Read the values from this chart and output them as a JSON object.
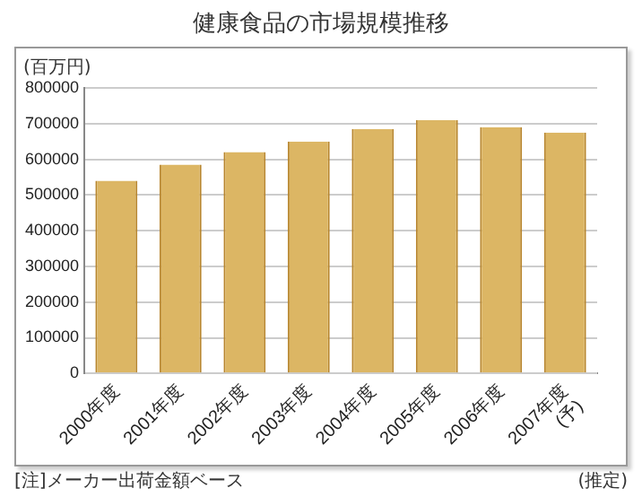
{
  "chart_data": {
    "type": "bar",
    "title": "健康食品の市場規模推移",
    "ylabel": "(百万円)",
    "categories": [
      "2000年度",
      "2001年度",
      "2002年度",
      "2003年度",
      "2004年度",
      "2005年度",
      "2006年度",
      "2007年度\n(予)"
    ],
    "values": [
      540000,
      585000,
      620000,
      650000,
      685000,
      710000,
      690000,
      675000
    ],
    "color": "#dcb664",
    "ylim": [
      0,
      800000
    ],
    "yticks": [
      0,
      100000,
      200000,
      300000,
      400000,
      500000,
      600000,
      700000,
      800000
    ],
    "grid": "y",
    "annotations": [
      "[注]メーカー出荷金額ベース",
      "(推定)"
    ]
  }
}
